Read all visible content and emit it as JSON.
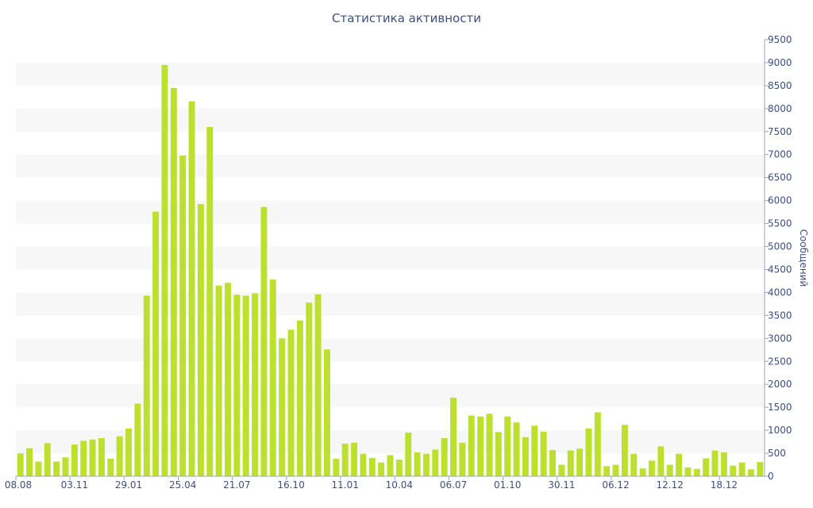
{
  "chart_data": {
    "type": "bar",
    "title": "Статистика активности",
    "xlabel": "",
    "ylabel": "Сообщений",
    "y_axis_side": "right",
    "ylim": [
      0,
      9500
    ],
    "y_ticks": [
      0,
      500,
      1000,
      1500,
      2000,
      2500,
      3000,
      3500,
      4000,
      4500,
      5000,
      5500,
      6000,
      6500,
      7000,
      7500,
      8000,
      8500,
      9000,
      9500
    ],
    "grid": "alternating horizontal bands",
    "legend": "none",
    "bar_color": "#bde02f",
    "x_tick_labels": [
      {
        "label": "08.08",
        "index": 0
      },
      {
        "label": "03.11",
        "index": 6
      },
      {
        "label": "29.01",
        "index": 12
      },
      {
        "label": "25.04",
        "index": 18
      },
      {
        "label": "21.07",
        "index": 24
      },
      {
        "label": "16.10",
        "index": 30
      },
      {
        "label": "11.01",
        "index": 36
      },
      {
        "label": "10.04",
        "index": 42
      },
      {
        "label": "06.07",
        "index": 48
      },
      {
        "label": "01.10",
        "index": 54
      },
      {
        "label": "30.11",
        "index": 60
      },
      {
        "label": "06.12",
        "index": 66
      },
      {
        "label": "12.12",
        "index": 72
      },
      {
        "label": "18.12",
        "index": 78
      }
    ],
    "values": [
      500,
      610,
      320,
      720,
      320,
      410,
      690,
      770,
      800,
      830,
      380,
      870,
      1040,
      1580,
      3930,
      5760,
      8950,
      8450,
      6980,
      8160,
      5920,
      7600,
      4150,
      4210,
      3950,
      3930,
      3980,
      5860,
      4280,
      3000,
      3190,
      3390,
      3780,
      3960,
      2760,
      380,
      710,
      730,
      490,
      400,
      300,
      460,
      360,
      950,
      520,
      490,
      580,
      830,
      1710,
      730,
      1320,
      1300,
      1360,
      960,
      1300,
      1170,
      850,
      1100,
      970,
      570,
      250,
      560,
      600,
      1040,
      1390,
      220,
      250,
      1120,
      490,
      170,
      340,
      650,
      250,
      490,
      190,
      160,
      390,
      560,
      520,
      230,
      300,
      150,
      310
    ]
  }
}
